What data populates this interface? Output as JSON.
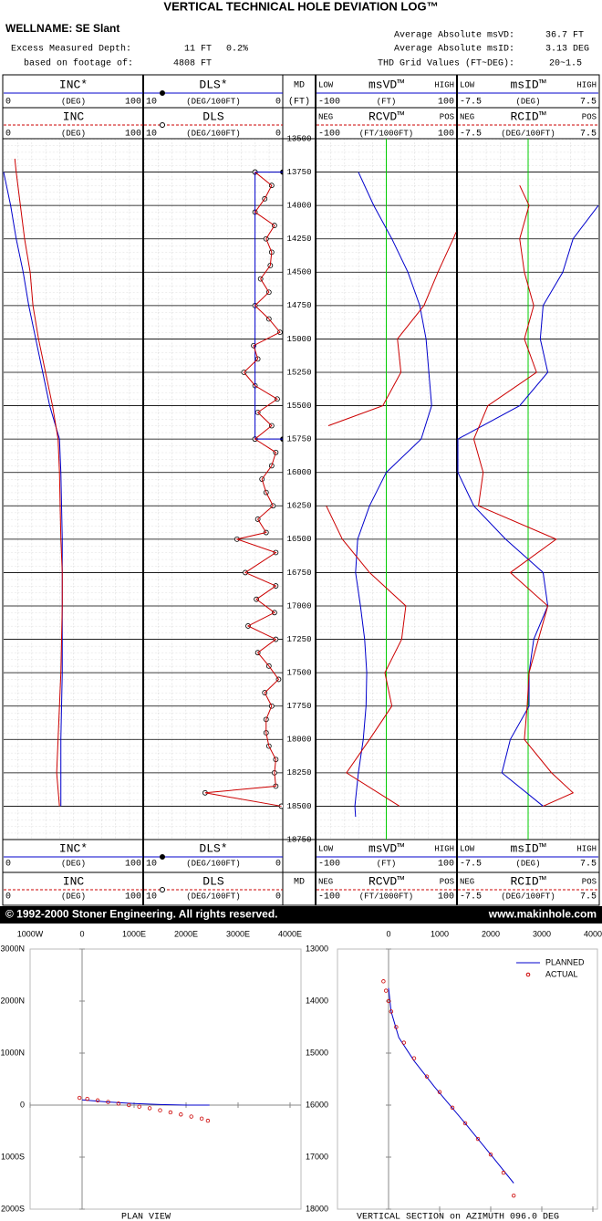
{
  "header": {
    "title": "VERTICAL TECHNICAL HOLE DEVIATION LOG™",
    "wellname": "WELLNAME: SE Slant",
    "excess_label": "Excess Measured Depth:",
    "excess_value": "11 FT",
    "excess_percent": "0.2%",
    "footage_label": "based on footage of:",
    "footage_value": "4808 FT",
    "msvd_label": "Average Absolute msVD:",
    "msvd_value": "36.7 FT",
    "msid_label": "Average Absolute msID:",
    "msid_value": "3.13 DEG",
    "thd_label": "THD Grid Values (FT~DEG):",
    "thd_value": "20~1.5"
  },
  "footer": {
    "copyright": "© 1992-2000 Stoner Engineering. All rights reserved.",
    "url": "www.makinhole.com"
  },
  "chart_data": [
    {
      "type": "depth_scale",
      "label": "MD",
      "unit": "(FT)",
      "ylim": [
        18750,
        13500
      ],
      "yticks": [
        13500,
        13750,
        14000,
        14250,
        14500,
        14750,
        15000,
        15250,
        15500,
        15750,
        16000,
        16250,
        16500,
        16750,
        17000,
        17250,
        17500,
        17750,
        18000,
        18250,
        18500,
        18750
      ],
      "grid": true
    },
    {
      "type": "log_track",
      "series": [
        {
          "name": "INC*",
          "unit": "(DEG)",
          "xlim": [
            0,
            100
          ],
          "color": "#0000cc",
          "depth": [
            13750,
            14000,
            14250,
            14500,
            14750,
            15000,
            15250,
            15500,
            15750,
            16000,
            16500,
            17000,
            17500,
            18000,
            18500
          ],
          "values": [
            0,
            5,
            9,
            14,
            18,
            23,
            28,
            33,
            40,
            41,
            42,
            42,
            42,
            41,
            41
          ]
        },
        {
          "name": "INC",
          "unit": "(DEG)",
          "xlim": [
            0,
            100
          ],
          "color": "#cc0000",
          "depth": [
            13650,
            13750,
            14000,
            14250,
            14500,
            14750,
            15000,
            15250,
            15500,
            15750,
            16000,
            16500,
            16750,
            17000,
            17500,
            18000,
            18250,
            18500
          ],
          "values": [
            8,
            9,
            12,
            15,
            19,
            21,
            25,
            30,
            35,
            39,
            40,
            41,
            42,
            42,
            41,
            39,
            38,
            40
          ]
        }
      ]
    },
    {
      "type": "log_track",
      "series": [
        {
          "name": "DLS*",
          "unit": "(DEG/100FT)",
          "xlim": [
            10,
            0
          ],
          "color": "#0000cc",
          "marker": "dot",
          "depth": [
            13750,
            13750,
            15750,
            15750
          ],
          "values": [
            0,
            2,
            2,
            0
          ]
        },
        {
          "name": "DLS",
          "unit": "(DEG/100FT)",
          "xlim": [
            10,
            0
          ],
          "color": "#cc0000",
          "marker": "circle",
          "depth": [
            13750,
            13850,
            13950,
            14050,
            14150,
            14250,
            14350,
            14450,
            14550,
            14650,
            14750,
            14850,
            14950,
            15050,
            15150,
            15250,
            15350,
            15450,
            15550,
            15650,
            15750,
            15850,
            15950,
            16050,
            16150,
            16250,
            16350,
            16450,
            16500,
            16600,
            16750,
            16850,
            16950,
            17050,
            17150,
            17250,
            17350,
            17450,
            17550,
            17650,
            17750,
            17850,
            17950,
            18050,
            18150,
            18250,
            18350,
            18400,
            18500
          ],
          "values": [
            2.0,
            0.8,
            1.3,
            2.0,
            0.6,
            1.2,
            0.8,
            0.9,
            1.6,
            1.0,
            2.0,
            1.0,
            0.2,
            2.1,
            1.8,
            2.8,
            2.0,
            0.4,
            1.8,
            0.8,
            2.0,
            0.5,
            0.8,
            1.5,
            1.2,
            0.7,
            1.8,
            1.2,
            3.3,
            0.5,
            2.7,
            0.5,
            1.9,
            0.6,
            2.5,
            0.5,
            1.8,
            1.0,
            0.3,
            1.3,
            0.8,
            1.2,
            1.2,
            1.0,
            0.5,
            0.6,
            0.5,
            5.6,
            0.1
          ]
        }
      ]
    },
    {
      "type": "log_track",
      "reference_line": 0,
      "reference_color": "#00cc00",
      "series": [
        {
          "name": "msVD™",
          "low_label": "LOW",
          "high_label": "HIGH",
          "unit": "(FT)",
          "xlim": [
            -100,
            100
          ],
          "color": "#0000cc",
          "depth": [
            13750,
            14000,
            14250,
            14500,
            14750,
            15000,
            15250,
            15500,
            15750,
            16000,
            16250,
            16500,
            16750,
            17000,
            17250,
            17500,
            17750,
            18000,
            18250,
            18500,
            18580
          ],
          "values": [
            -40,
            -18,
            8,
            31,
            48,
            57,
            61,
            65,
            50,
            0,
            -24,
            -41,
            -44,
            -37,
            -31,
            -28,
            -29,
            -33,
            -40,
            -45,
            -44
          ]
        },
        {
          "name": "RCVD™",
          "low_label": "NEG",
          "high_label": "POS",
          "unit": "(FT/1000FT)",
          "xlim": [
            -100,
            100
          ],
          "color": "#cc0000",
          "depth": [
            14200,
            14250,
            14500,
            14750,
            15000,
            15250,
            15500,
            15650,
            15750,
            16250,
            16500,
            16750,
            17000,
            17250,
            17500,
            17750,
            18000,
            18250,
            18500
          ],
          "values": [
            100,
            96,
            74,
            54,
            16,
            21,
            -5,
            -83,
            null,
            -86,
            -63,
            -24,
            28,
            22,
            -2,
            8,
            -24,
            -57,
            19
          ]
        }
      ]
    },
    {
      "type": "log_track",
      "reference_line": 0,
      "reference_color": "#00cc00",
      "series": [
        {
          "name": "msID™",
          "low_label": "LOW",
          "high_label": "HIGH",
          "unit": "(DEG)",
          "xlim": [
            -7.5,
            7.5
          ],
          "color": "#0000cc",
          "depth": [
            14000,
            14250,
            14500,
            14750,
            15000,
            15250,
            15500,
            15750,
            16000,
            16250,
            16500,
            16750,
            17000,
            17250,
            17500,
            17750,
            18000,
            18250,
            18500
          ],
          "values": [
            7.5,
            4.8,
            3.7,
            1.6,
            1.3,
            2.1,
            -0.9,
            -7.5,
            -7.5,
            -5.8,
            -2.4,
            1.6,
            2.1,
            0.6,
            0.1,
            0.1,
            -1.9,
            -2.8,
            1.6
          ]
        },
        {
          "name": "RCID™",
          "low_label": "NEG",
          "high_label": "POS",
          "unit": "(DEG/100FT)",
          "xlim": [
            -7.5,
            7.5
          ],
          "color": "#cc0000",
          "depth": [
            13850,
            14000,
            14250,
            14500,
            14750,
            15000,
            15250,
            15500,
            15750,
            16000,
            16250,
            16500,
            16750,
            17000,
            17250,
            17500,
            17750,
            18000,
            18250,
            18400,
            18500
          ],
          "values": [
            -0.9,
            0.1,
            -0.9,
            -0.4,
            0.6,
            -0.4,
            0.9,
            -4.3,
            -5.8,
            -4.8,
            -5.3,
            3.0,
            -1.9,
            2.1,
            1.1,
            0.1,
            -0.1,
            -0.4,
            2.5,
            4.8,
            1.6
          ]
        }
      ]
    },
    {
      "type": "scatter",
      "title": "PLAN VIEW",
      "xlim": [
        -1000,
        4000
      ],
      "xticks": [
        {
          "value": -1000,
          "label": "1000W"
        },
        0,
        {
          "value": 1000,
          "label": "1000E"
        },
        {
          "value": 2000,
          "label": "2000E"
        },
        {
          "value": 3000,
          "label": "3000E"
        },
        {
          "value": 4000,
          "label": "4000E"
        }
      ],
      "ylim": [
        -2000,
        3000
      ],
      "yticks": [
        {
          "value": 3000,
          "label": "3000N"
        },
        {
          "value": 2000,
          "label": "2000N"
        },
        {
          "value": 1000,
          "label": "1000N"
        },
        0,
        {
          "value": -1000,
          "label": "1000S"
        },
        {
          "value": -2000,
          "label": "2000S"
        }
      ],
      "series": [
        {
          "color": "#0000cc",
          "marker": "line",
          "x": [
            0,
            500,
            1000,
            1500,
            2000,
            2450
          ],
          "y": [
            100,
            60,
            30,
            10,
            0,
            0
          ]
        },
        {
          "color": "#cc0000",
          "marker": "circle",
          "x": [
            -50,
            100,
            300,
            500,
            700,
            900,
            1100,
            1300,
            1500,
            1700,
            1900,
            2100,
            2300,
            2420
          ],
          "y": [
            140,
            120,
            90,
            60,
            30,
            0,
            -30,
            -60,
            -100,
            -140,
            -180,
            -220,
            -260,
            -300
          ]
        }
      ]
    },
    {
      "type": "scatter",
      "title": "VERTICAL SECTION on AZIMUTH 096.0 DEG",
      "xlim": [
        0,
        4000
      ],
      "xticks": [
        0,
        1000,
        2000,
        3000,
        4000
      ],
      "ylim": [
        18000,
        13000
      ],
      "yticks": [
        13000,
        14000,
        15000,
        16000,
        17000,
        18000
      ],
      "legend": "upper right",
      "series": [
        {
          "name": "PLANNED",
          "color": "#0000cc",
          "marker": "line",
          "x": [
            0,
            50,
            200,
            500,
            900,
            1500,
            2000,
            2450
          ],
          "y": [
            13750,
            14200,
            14700,
            15150,
            15650,
            16350,
            16950,
            17500
          ]
        },
        {
          "name": "ACTUAL",
          "color": "#cc0000",
          "marker": "circle",
          "x": [
            -100,
            -50,
            0,
            50,
            150,
            300,
            500,
            750,
            1000,
            1250,
            1500,
            1750,
            2000,
            2250,
            2450
          ],
          "y": [
            13620,
            13800,
            14000,
            14200,
            14500,
            14800,
            15100,
            15450,
            15750,
            16050,
            16350,
            16650,
            16950,
            17300,
            17740
          ]
        }
      ]
    }
  ]
}
